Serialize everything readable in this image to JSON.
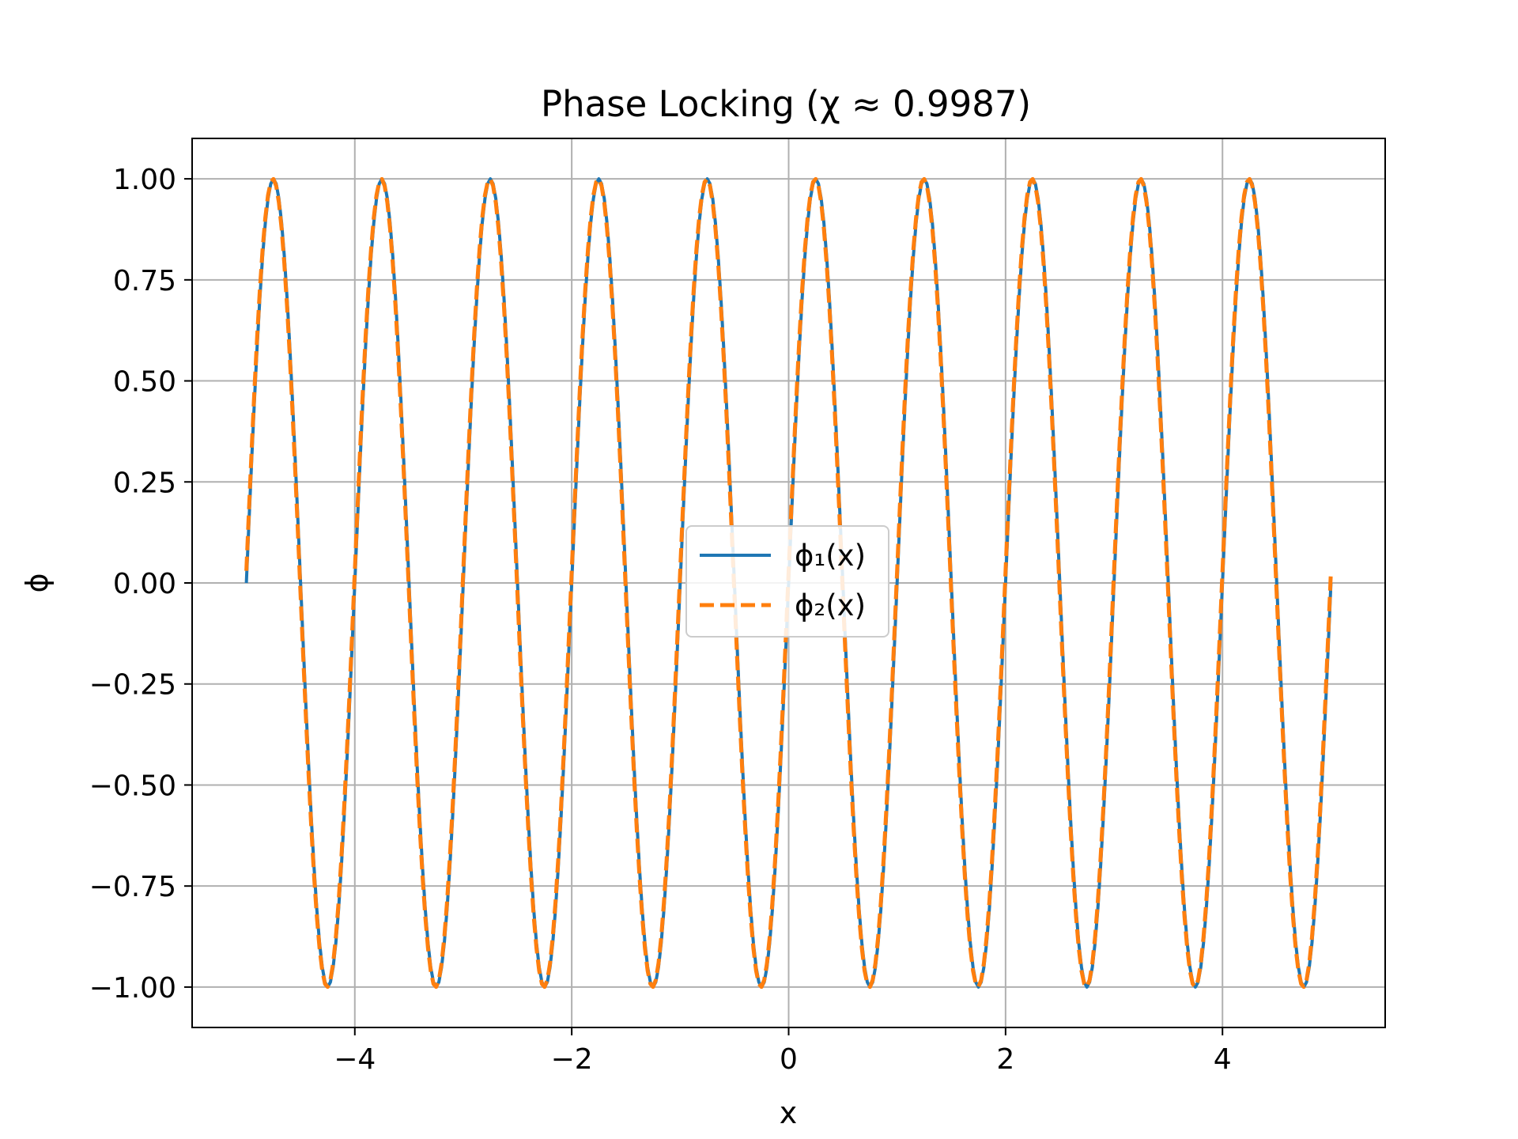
{
  "chart_data": {
    "type": "line",
    "title": "Phase Locking (χ ≈ 0.9987)",
    "xlabel": "x",
    "ylabel": "ϕ",
    "xlim": [
      -5.5,
      5.5
    ],
    "ylim": [
      -1.1,
      1.1
    ],
    "x_ticks": [
      -4,
      -2,
      0,
      2,
      4
    ],
    "x_tick_labels": [
      "−4",
      "−2",
      "0",
      "2",
      "4"
    ],
    "y_ticks": [
      -1.0,
      -0.75,
      -0.5,
      -0.25,
      0.0,
      0.25,
      0.5,
      0.75,
      1.0
    ],
    "y_tick_labels": [
      "−1.00",
      "−0.75",
      "−0.50",
      "−0.25",
      "0.00",
      "0.25",
      "0.50",
      "0.75",
      "1.00"
    ],
    "grid": true,
    "legend_position": "center",
    "x_range": [
      -5,
      5
    ],
    "series": [
      {
        "name": "ϕ₁(x)",
        "color": "#1f77b4",
        "line_style": "solid",
        "function": "sin(2πx)",
        "amplitude": 1.0,
        "frequency": 1.0,
        "phase": 0.0
      },
      {
        "name": "ϕ₂(x)",
        "color": "#ff7f0e",
        "line_style": "dashed",
        "function": "sin(2πx + 0.03)",
        "amplitude": 1.0,
        "frequency": 1.0,
        "phase": 0.03
      }
    ]
  }
}
